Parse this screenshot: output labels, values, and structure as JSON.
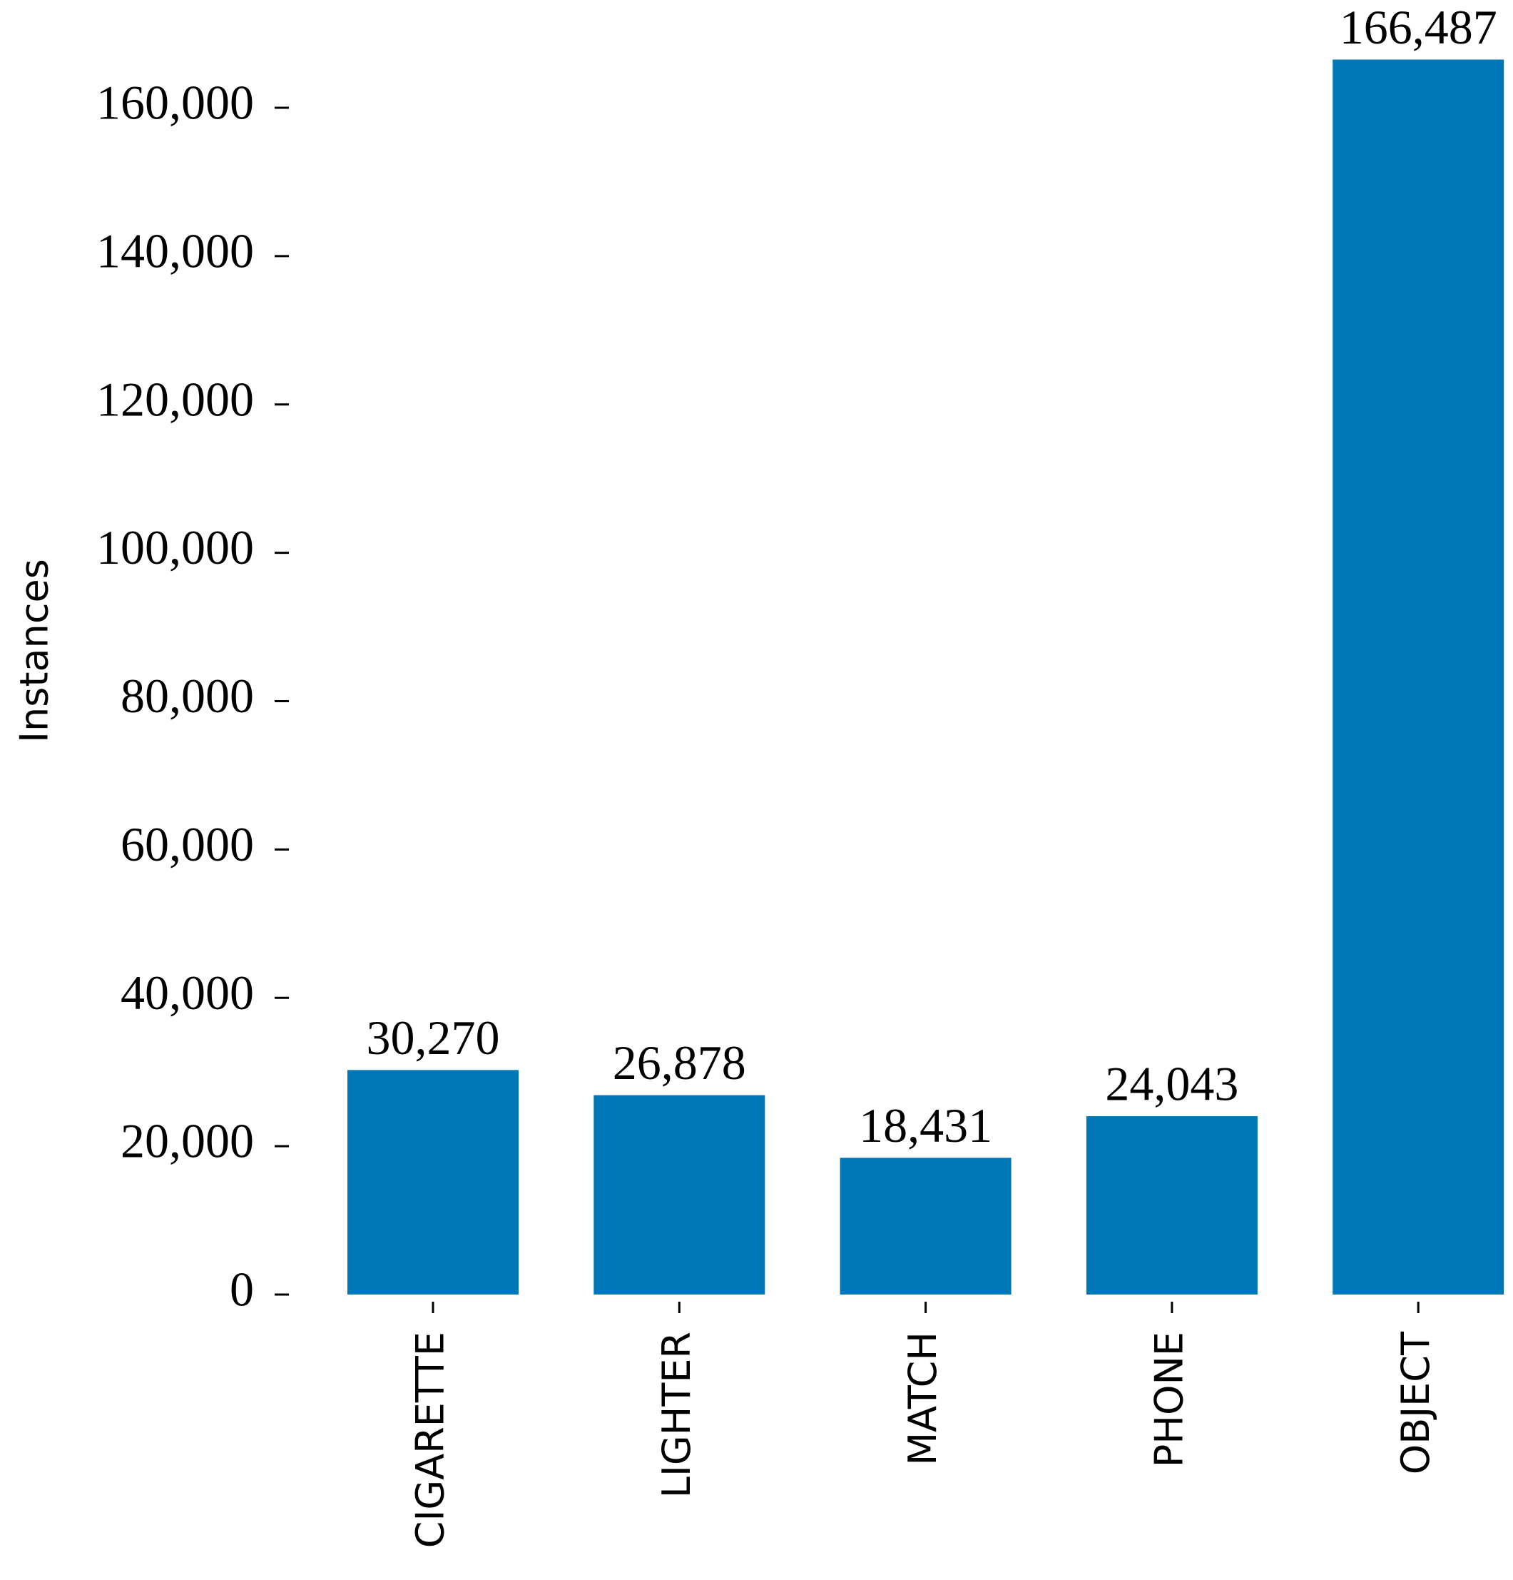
{
  "chart_data": {
    "type": "bar",
    "y_label": "Instances",
    "categories": [
      "CIGARETTE",
      "LIGHTER",
      "MATCH",
      "PHONE",
      "OBJECT"
    ],
    "values": [
      30270,
      26878,
      18431,
      24043,
      166487
    ],
    "value_labels": [
      "30,270",
      "26,878",
      "18,431",
      "24,043",
      "166,487"
    ],
    "color": "#0077b6",
    "ylim": [
      0,
      170000
    ],
    "yticks": [
      0,
      {
        "value": 20000,
        "label": "20,000"
      },
      {
        "value": 40000,
        "label": "40,000"
      },
      {
        "value": 60000,
        "label": "60,000"
      },
      {
        "value": 80000,
        "label": "80,000"
      },
      {
        "value": 100000,
        "label": "100,000"
      },
      {
        "value": 120000,
        "label": "120,000"
      },
      {
        "value": 140000,
        "label": "140,000"
      },
      {
        "value": 160000,
        "label": "160,000"
      }
    ],
    "grid": false
  }
}
